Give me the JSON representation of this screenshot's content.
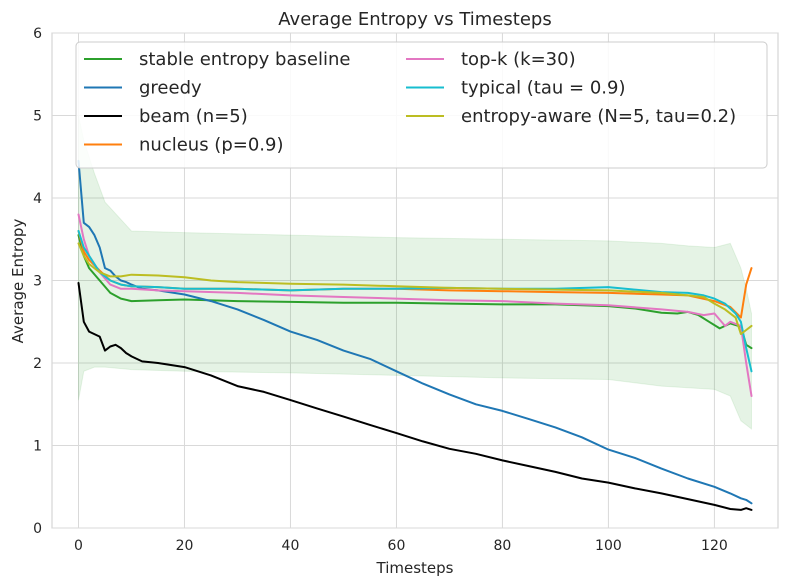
{
  "chart_data": {
    "type": "line",
    "title": "Average Entropy vs Timesteps",
    "xlabel": "Timesteps",
    "ylabel": "Average Entropy",
    "xlim": [
      -5,
      132
    ],
    "ylim": [
      0,
      6
    ],
    "xticks": [
      0,
      20,
      40,
      60,
      80,
      100,
      120
    ],
    "yticks": [
      0,
      1,
      2,
      3,
      4,
      5,
      6
    ],
    "grid": true,
    "legend_placement": "top",
    "band": {
      "series": "stable entropy baseline",
      "color": "#2ca02c",
      "x": [
        0,
        1,
        3,
        5,
        10,
        20,
        40,
        60,
        80,
        100,
        110,
        115,
        120,
        123,
        125,
        126,
        127
      ],
      "upper": [
        5.0,
        4.7,
        4.3,
        3.95,
        3.6,
        3.58,
        3.55,
        3.52,
        3.5,
        3.48,
        3.45,
        3.42,
        3.4,
        3.45,
        3.15,
        2.9,
        2.6
      ],
      "lower": [
        1.55,
        1.9,
        1.95,
        1.95,
        1.92,
        1.9,
        1.88,
        1.85,
        1.82,
        1.8,
        1.72,
        1.7,
        1.68,
        1.6,
        1.3,
        1.25,
        1.2
      ]
    },
    "series": [
      {
        "name": "stable entropy baseline",
        "color": "#2ca02c",
        "x": [
          0,
          1,
          2,
          4,
          6,
          8,
          10,
          15,
          20,
          30,
          40,
          50,
          60,
          70,
          80,
          90,
          100,
          105,
          110,
          113,
          115,
          117,
          119,
          121,
          123,
          125,
          126,
          127
        ],
        "y": [
          3.55,
          3.3,
          3.15,
          3.0,
          2.85,
          2.78,
          2.75,
          2.76,
          2.77,
          2.75,
          2.74,
          2.73,
          2.73,
          2.72,
          2.71,
          2.71,
          2.69,
          2.66,
          2.61,
          2.6,
          2.62,
          2.58,
          2.5,
          2.42,
          2.48,
          2.44,
          2.22,
          2.18
        ]
      },
      {
        "name": "greedy",
        "color": "#1f77b4",
        "x": [
          0,
          1,
          2,
          3,
          4,
          5,
          6,
          7,
          8,
          9,
          10,
          12,
          15,
          20,
          25,
          30,
          35,
          40,
          45,
          50,
          55,
          60,
          65,
          70,
          75,
          80,
          85,
          90,
          95,
          100,
          105,
          110,
          115,
          120,
          123,
          125,
          126,
          127
        ],
        "y": [
          4.45,
          3.7,
          3.65,
          3.55,
          3.4,
          3.15,
          3.12,
          3.05,
          3.0,
          2.98,
          2.95,
          2.9,
          2.88,
          2.83,
          2.75,
          2.65,
          2.52,
          2.38,
          2.28,
          2.15,
          2.05,
          1.9,
          1.75,
          1.62,
          1.5,
          1.42,
          1.32,
          1.22,
          1.1,
          0.95,
          0.85,
          0.72,
          0.6,
          0.5,
          0.42,
          0.36,
          0.34,
          0.3
        ]
      },
      {
        "name": "beam (n=5)",
        "color": "#000000",
        "x": [
          0,
          1,
          2,
          3,
          4,
          5,
          6,
          7,
          8,
          9,
          10,
          12,
          15,
          20,
          25,
          30,
          35,
          40,
          45,
          50,
          55,
          60,
          65,
          70,
          75,
          80,
          85,
          90,
          95,
          100,
          105,
          110,
          115,
          120,
          123,
          125,
          126,
          127
        ],
        "y": [
          2.97,
          2.5,
          2.38,
          2.35,
          2.32,
          2.15,
          2.2,
          2.22,
          2.18,
          2.12,
          2.08,
          2.02,
          2.0,
          1.95,
          1.85,
          1.72,
          1.65,
          1.55,
          1.45,
          1.35,
          1.25,
          1.15,
          1.05,
          0.96,
          0.9,
          0.82,
          0.75,
          0.68,
          0.6,
          0.55,
          0.48,
          0.42,
          0.35,
          0.28,
          0.23,
          0.22,
          0.24,
          0.22
        ]
      },
      {
        "name": "nucleus (p=0.9)",
        "color": "#ff7f0e",
        "x": [
          0,
          1,
          2,
          4,
          6,
          8,
          10,
          15,
          20,
          30,
          40,
          50,
          60,
          70,
          80,
          90,
          100,
          110,
          115,
          120,
          123,
          125,
          126,
          127
        ],
        "y": [
          3.6,
          3.35,
          3.25,
          3.12,
          3.0,
          2.95,
          2.93,
          2.92,
          2.9,
          2.9,
          2.88,
          2.9,
          2.9,
          2.88,
          2.87,
          2.86,
          2.85,
          2.83,
          2.82,
          2.75,
          2.68,
          2.55,
          2.95,
          3.15
        ]
      },
      {
        "name": "top-k (k=30)",
        "color": "#e377c2",
        "x": [
          0,
          1,
          2,
          4,
          6,
          8,
          10,
          15,
          20,
          30,
          40,
          50,
          60,
          70,
          80,
          90,
          100,
          110,
          115,
          118,
          120,
          122,
          123,
          125,
          126,
          127
        ],
        "y": [
          3.8,
          3.5,
          3.3,
          3.1,
          2.95,
          2.9,
          2.9,
          2.88,
          2.87,
          2.85,
          2.82,
          2.8,
          2.78,
          2.76,
          2.75,
          2.72,
          2.7,
          2.65,
          2.62,
          2.58,
          2.6,
          2.45,
          2.5,
          2.45,
          2.0,
          1.6
        ]
      },
      {
        "name": "typical (tau = 0.9)",
        "color": "#17becf",
        "x": [
          0,
          1,
          2,
          4,
          6,
          8,
          10,
          15,
          20,
          30,
          40,
          50,
          60,
          70,
          80,
          90,
          100,
          110,
          115,
          118,
          120,
          122,
          124,
          125,
          126,
          127
        ],
        "y": [
          3.6,
          3.4,
          3.3,
          3.1,
          3.0,
          2.95,
          2.93,
          2.92,
          2.9,
          2.9,
          2.88,
          2.9,
          2.9,
          2.91,
          2.9,
          2.9,
          2.92,
          2.86,
          2.85,
          2.82,
          2.78,
          2.72,
          2.6,
          2.5,
          2.18,
          1.9
        ]
      },
      {
        "name": "entropy-aware (N=5, tau=0.2)",
        "color": "#bcbd22",
        "x": [
          0,
          1,
          2,
          4,
          6,
          8,
          10,
          15,
          20,
          25,
          30,
          40,
          50,
          60,
          70,
          80,
          90,
          100,
          110,
          115,
          118,
          120,
          122,
          124,
          125,
          126,
          127
        ],
        "y": [
          3.45,
          3.3,
          3.2,
          3.1,
          3.05,
          3.05,
          3.07,
          3.06,
          3.04,
          3.0,
          2.98,
          2.96,
          2.95,
          2.93,
          2.91,
          2.9,
          2.89,
          2.88,
          2.85,
          2.82,
          2.8,
          2.72,
          2.65,
          2.55,
          2.35,
          2.4,
          2.45
        ]
      }
    ]
  }
}
